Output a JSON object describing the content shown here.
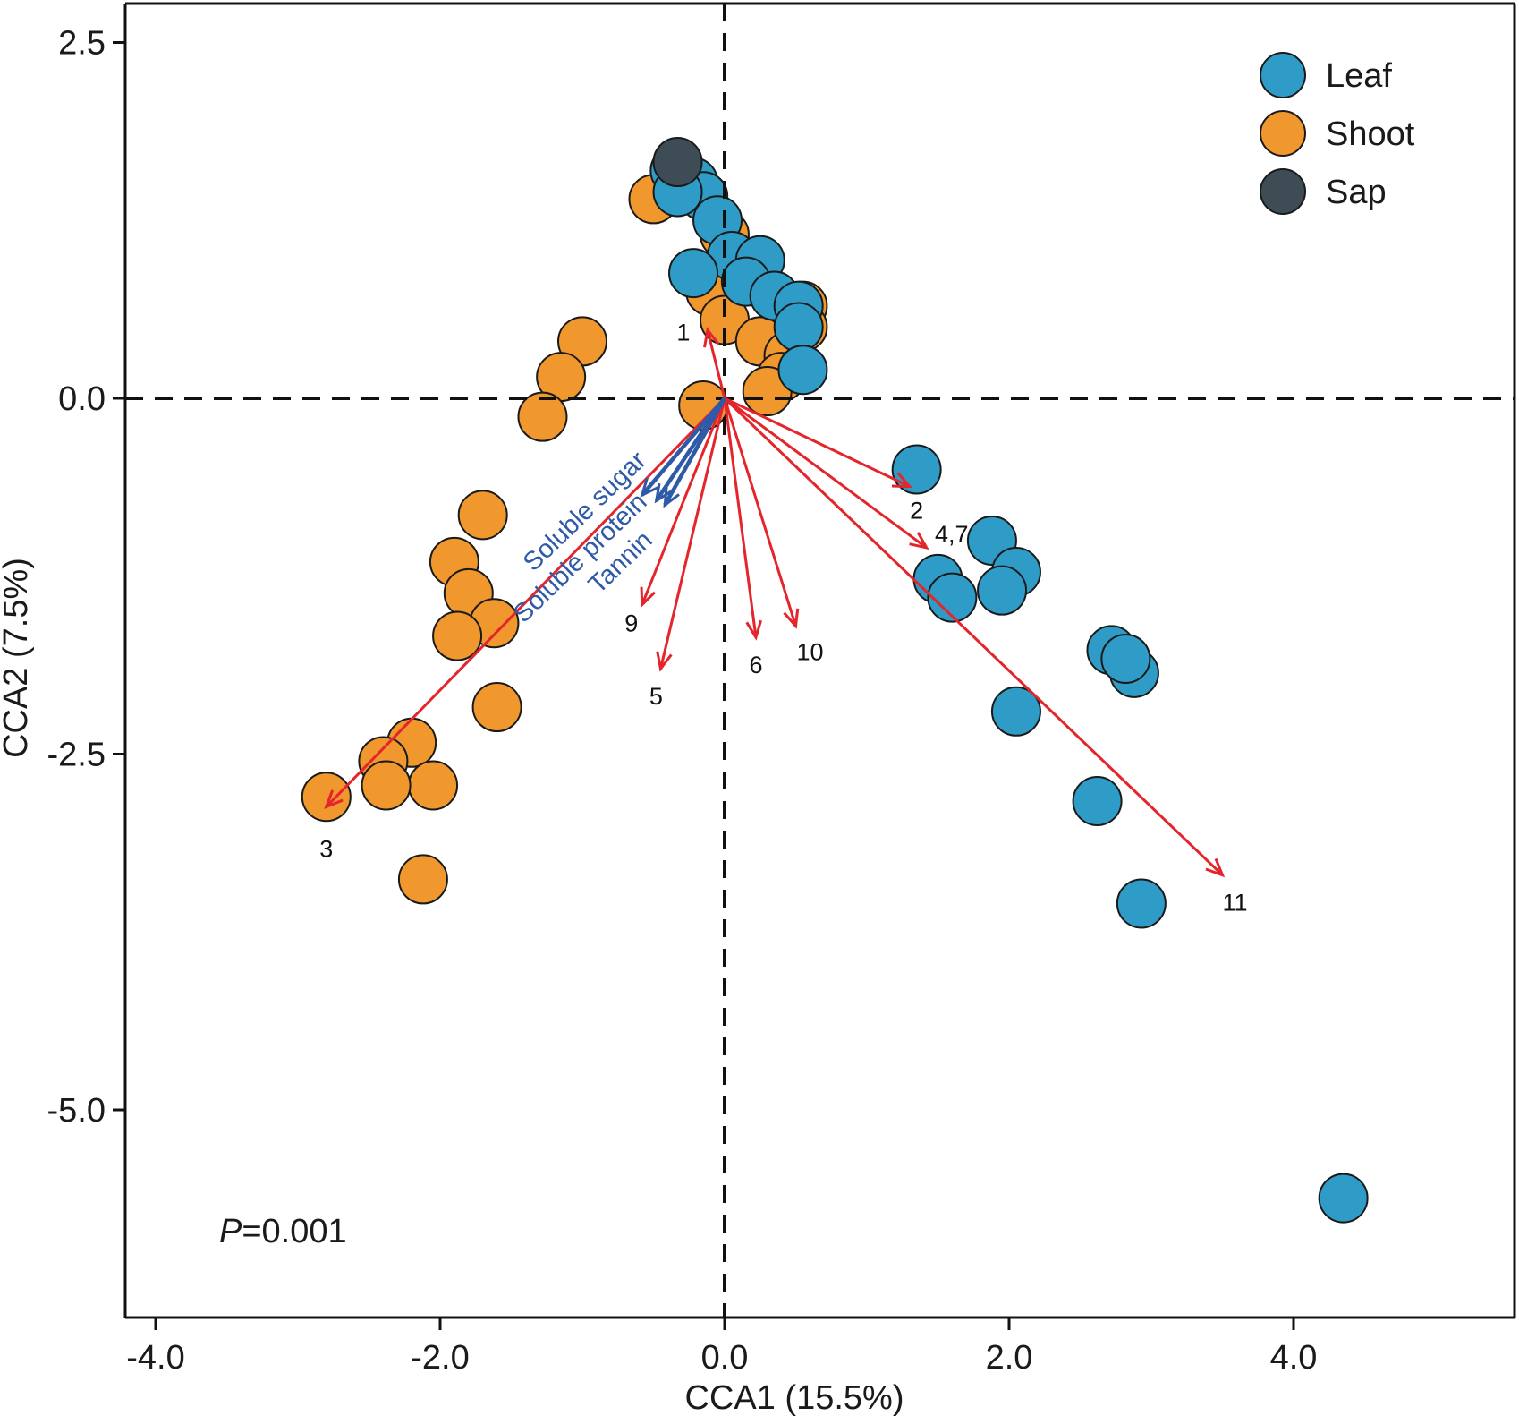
{
  "chart_data": {
    "type": "scatter",
    "xlabel": "CCA1 (15.5%)",
    "ylabel": "CCA2 (7.5%)",
    "xlim": [
      -4.2,
      5.5
    ],
    "ylim": [
      -6.4,
      2.8
    ],
    "xticks": [
      {
        "value": -4.0,
        "label": "-4.0"
      },
      {
        "value": -2.0,
        "label": "-2.0"
      },
      {
        "value": 0.0,
        "label": "0.0"
      },
      {
        "value": 2.0,
        "label": "2.0"
      },
      {
        "value": 4.0,
        "label": "4.0"
      }
    ],
    "yticks": [
      {
        "value": 2.5,
        "label": "2.5"
      },
      {
        "value": 0.0,
        "label": "0.0"
      },
      {
        "value": -2.5,
        "label": "-2.5"
      },
      {
        "value": -5.0,
        "label": "-5.0"
      }
    ],
    "annotation_prefix": "P",
    "annotation_value": "=0.001",
    "legend": {
      "position": "top-right",
      "entries": [
        {
          "name": "Leaf",
          "color": "#2e9cc6"
        },
        {
          "name": "Shoot",
          "color": "#f0972e"
        },
        {
          "name": "Sap",
          "color": "#3e4c55"
        }
      ]
    },
    "series": [
      {
        "name": "Shoot",
        "color": "#f0972e",
        "points": [
          [
            -0.5,
            1.4
          ],
          [
            0.0,
            1.15
          ],
          [
            -0.1,
            0.75
          ],
          [
            0.0,
            0.55
          ],
          [
            0.25,
            0.4
          ],
          [
            0.45,
            0.3
          ],
          [
            0.4,
            0.15
          ],
          [
            0.3,
            0.05
          ],
          [
            0.55,
            0.65
          ],
          [
            0.55,
            0.5
          ],
          [
            -0.15,
            -0.05
          ],
          [
            -1.0,
            0.4
          ],
          [
            -1.15,
            0.15
          ],
          [
            -1.28,
            -0.13
          ],
          [
            -1.7,
            -0.82
          ],
          [
            -1.9,
            -1.15
          ],
          [
            -1.8,
            -1.37
          ],
          [
            -1.62,
            -1.58
          ],
          [
            -1.88,
            -1.67
          ],
          [
            -1.6,
            -2.17
          ],
          [
            -2.2,
            -2.42
          ],
          [
            -2.4,
            -2.55
          ],
          [
            -2.05,
            -2.72
          ],
          [
            -2.38,
            -2.72
          ],
          [
            -2.8,
            -2.8
          ],
          [
            -2.12,
            -3.38
          ]
        ]
      },
      {
        "name": "Leaf",
        "color": "#2e9cc6",
        "points": [
          [
            -0.35,
            1.6
          ],
          [
            -0.22,
            1.52
          ],
          [
            -0.15,
            1.42
          ],
          [
            -0.33,
            1.45
          ],
          [
            -0.05,
            1.25
          ],
          [
            0.05,
            1.0
          ],
          [
            0.25,
            0.97
          ],
          [
            -0.22,
            0.88
          ],
          [
            0.15,
            0.82
          ],
          [
            0.35,
            0.72
          ],
          [
            0.52,
            0.65
          ],
          [
            0.52,
            0.5
          ],
          [
            0.55,
            0.2
          ],
          [
            1.35,
            -0.5
          ],
          [
            1.88,
            -1.0
          ],
          [
            2.05,
            -1.22
          ],
          [
            1.5,
            -1.27
          ],
          [
            1.6,
            -1.4
          ],
          [
            1.95,
            -1.35
          ],
          [
            2.72,
            -1.77
          ],
          [
            2.88,
            -1.93
          ],
          [
            2.82,
            -1.83
          ],
          [
            2.05,
            -2.2
          ],
          [
            2.62,
            -2.83
          ],
          [
            2.93,
            -3.55
          ],
          [
            4.35,
            -5.62
          ]
        ]
      },
      {
        "name": "Sap",
        "color": "#3e4c55",
        "points": [
          [
            -0.33,
            1.66
          ]
        ]
      }
    ],
    "red_vectors": [
      {
        "label": "1",
        "x": -0.12,
        "y": 0.48
      },
      {
        "label": "2",
        "x": 1.3,
        "y": -0.62
      },
      {
        "label": "3",
        "x": -2.8,
        "y": -2.87
      },
      {
        "label": "4,7",
        "x": 1.42,
        "y": -1.05
      },
      {
        "label": "5",
        "x": -0.45,
        "y": -1.9
      },
      {
        "label": "6",
        "x": 0.22,
        "y": -1.68
      },
      {
        "label": "9",
        "x": -0.58,
        "y": -1.45
      },
      {
        "label": "10",
        "x": 0.5,
        "y": -1.6
      },
      {
        "label": "11",
        "x": 3.5,
        "y": -3.35
      }
    ],
    "blue_vectors": [
      {
        "label": "Soluble sugar",
        "x": -0.58,
        "y": -0.68
      },
      {
        "label": "Soluble protein",
        "x": -0.48,
        "y": -0.72
      },
      {
        "label": "Tannin",
        "x": -0.42,
        "y": -0.75
      }
    ]
  }
}
